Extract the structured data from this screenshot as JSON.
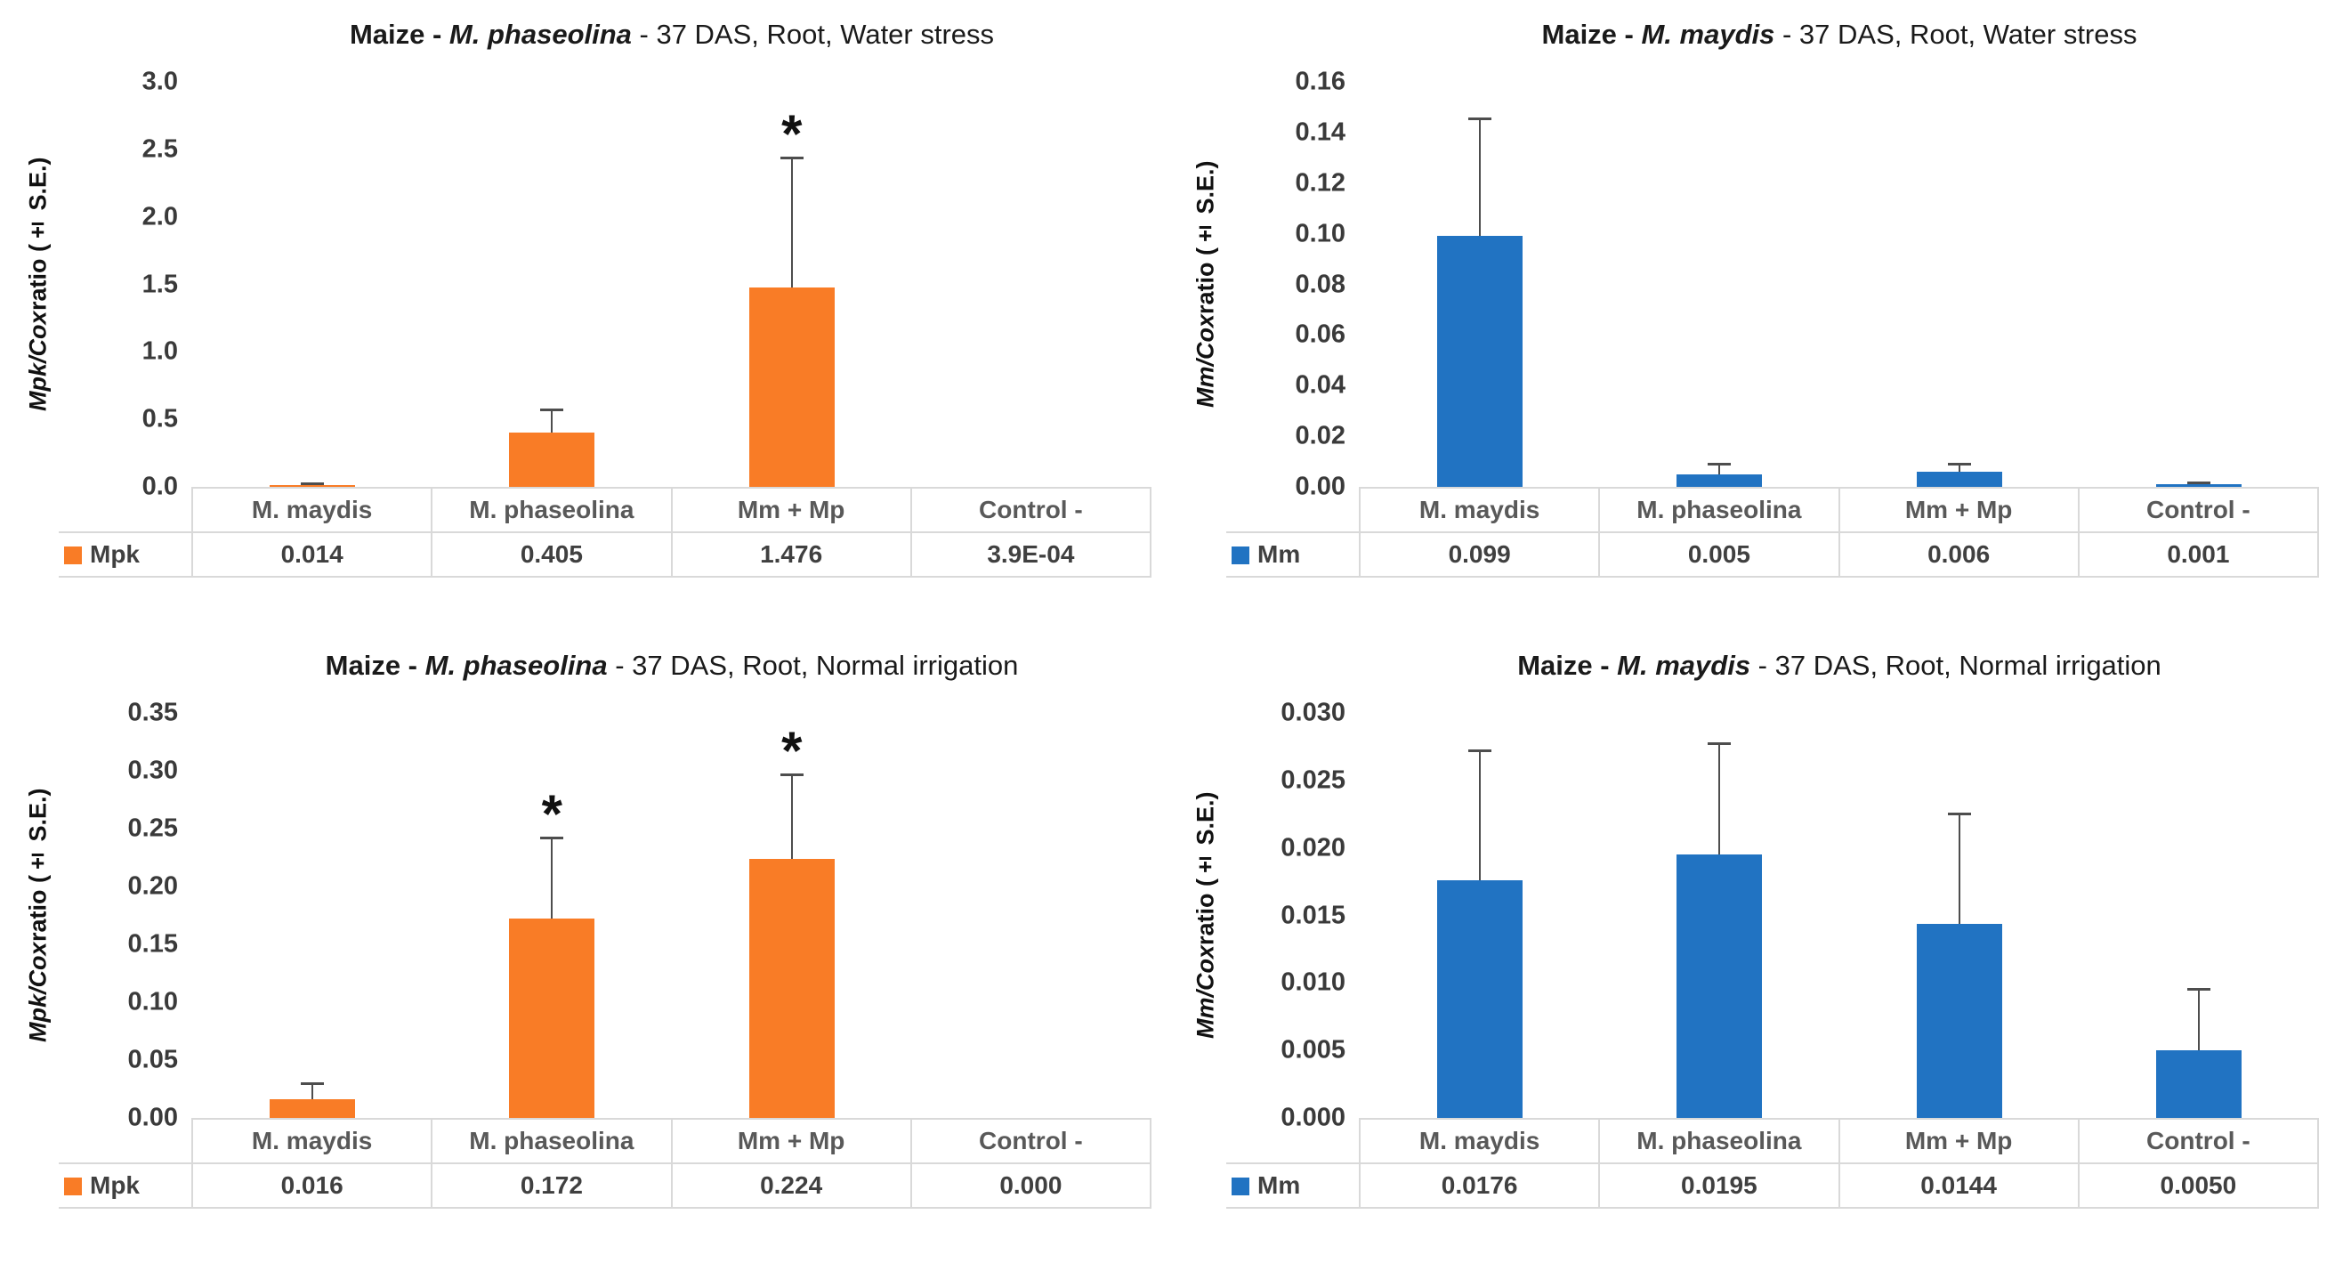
{
  "figure": {
    "background": "#ffffff",
    "layout": "2x2-grid-of-bar-charts"
  },
  "colors": {
    "orange_series": "#F97C26",
    "blue_series": "#2173C2",
    "error_bar": "#4d4d4d",
    "table_border": "#d9d9d9",
    "header_text": "#595959",
    "value_text": "#404040",
    "tick_text": "#3a3a3a"
  },
  "chart_data": [
    {
      "type": "bar",
      "position": "top-left",
      "title": {
        "prefix": "Maize - ",
        "species": "M. phaseolina",
        "suffix": " - 37 DAS, Root, Water stress"
      },
      "ylabel": {
        "italic": "Mpk/Cox",
        "rest": " ratio (± S.E.)"
      },
      "grid": false,
      "legend_position": "table-left",
      "ylim": [
        0,
        3.0
      ],
      "ymax": 3.0,
      "yticks": [
        "3.0",
        "2.5",
        "2.0",
        "1.5",
        "1.0",
        "0.5",
        "0.0"
      ],
      "series_name": "Mpk",
      "series_color": "#F97C26",
      "categories": [
        "M. maydis",
        "M. phaseolina",
        "Mm + Mp",
        "Control -"
      ],
      "values": [
        0.014,
        0.405,
        1.476,
        0.00039
      ],
      "value_labels": [
        "0.014",
        "0.405",
        "1.476",
        "3.9E-04"
      ],
      "se": [
        0.016,
        0.175,
        0.97,
        0
      ],
      "significant": [
        false,
        false,
        true,
        false
      ]
    },
    {
      "type": "bar",
      "position": "top-right",
      "title": {
        "prefix": "Maize - ",
        "species": "M. maydis",
        "suffix": " - 37 DAS, Root, Water stress"
      },
      "ylabel": {
        "italic": "Mm/Cox",
        "rest": " ratio (± S.E.)"
      },
      "grid": false,
      "legend_position": "table-left",
      "ylim": [
        0,
        0.16
      ],
      "ymax": 0.16,
      "yticks": [
        "0.16",
        "0.14",
        "0.12",
        "0.10",
        "0.08",
        "0.06",
        "0.04",
        "0.02",
        "0.00"
      ],
      "series_name": "Mm",
      "series_color": "#2173C2",
      "categories": [
        "M. maydis",
        "M. phaseolina",
        "Mm + Mp",
        "Control -"
      ],
      "values": [
        0.099,
        0.005,
        0.006,
        0.001
      ],
      "value_labels": [
        "0.099",
        "0.005",
        "0.006",
        "0.001"
      ],
      "se": [
        0.047,
        0.0045,
        0.0035,
        0.001
      ],
      "significant": [
        false,
        false,
        false,
        false
      ]
    },
    {
      "type": "bar",
      "position": "bottom-left",
      "title": {
        "prefix": "Maize - ",
        "species": "M. phaseolina",
        "suffix": " - 37 DAS, Root, Normal irrigation"
      },
      "ylabel": {
        "italic": "Mpk/Cox",
        "rest": " ratio (± S.E.)"
      },
      "grid": false,
      "legend_position": "table-left",
      "ylim": [
        0,
        0.35
      ],
      "ymax": 0.35,
      "yticks": [
        "0.35",
        "0.30",
        "0.25",
        "0.20",
        "0.15",
        "0.10",
        "0.05",
        "0.00"
      ],
      "series_name": "Mpk",
      "series_color": "#F97C26",
      "categories": [
        "M. maydis",
        "M. phaseolina",
        "Mm + Mp",
        "Control -"
      ],
      "values": [
        0.016,
        0.172,
        0.224,
        0.0
      ],
      "value_labels": [
        "0.016",
        "0.172",
        "0.224",
        "0.000"
      ],
      "se": [
        0.015,
        0.071,
        0.074,
        0
      ],
      "significant": [
        false,
        true,
        true,
        false
      ]
    },
    {
      "type": "bar",
      "position": "bottom-right",
      "title": {
        "prefix": "Maize - ",
        "species": "M. maydis",
        "suffix": " - 37 DAS, Root, Normal irrigation"
      },
      "ylabel": {
        "italic": "Mm/Cox",
        "rest": " ratio (± S.E.)"
      },
      "grid": false,
      "legend_position": "table-left",
      "ylim": [
        0,
        0.03
      ],
      "ymax": 0.03,
      "yticks": [
        "0.030",
        "0.025",
        "0.020",
        "0.015",
        "0.010",
        "0.005",
        "0.000"
      ],
      "series_name": "Mm",
      "series_color": "#2173C2",
      "categories": [
        "M. maydis",
        "M. phaseolina",
        "Mm + Mp",
        "Control -"
      ],
      "values": [
        0.0176,
        0.0195,
        0.0144,
        0.005
      ],
      "value_labels": [
        "0.0176",
        "0.0195",
        "0.0144",
        "0.0050"
      ],
      "se": [
        0.0097,
        0.0083,
        0.0082,
        0.0046
      ],
      "significant": [
        false,
        false,
        false,
        false
      ]
    }
  ]
}
